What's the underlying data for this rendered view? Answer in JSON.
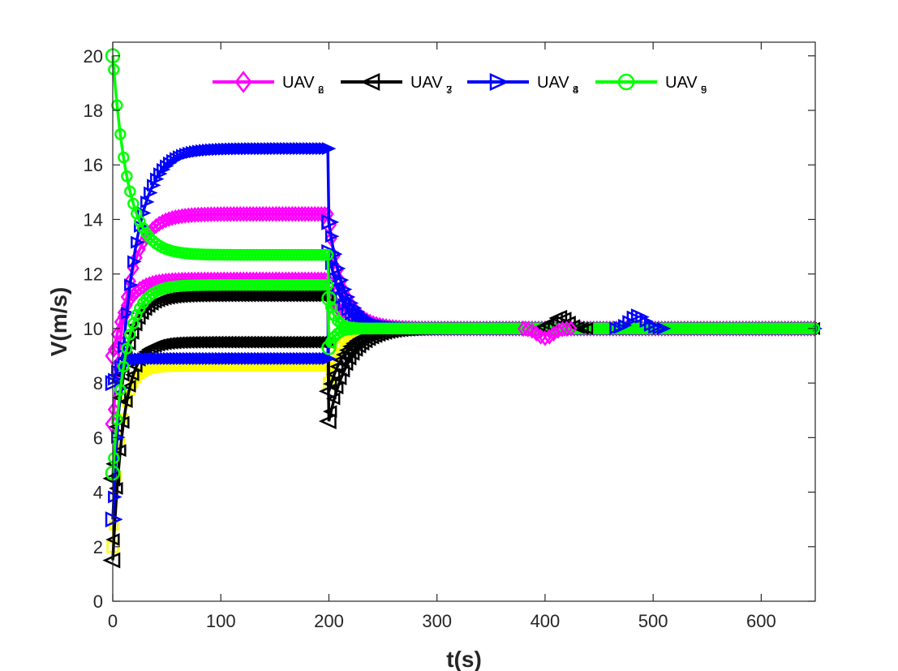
{
  "chart_data": {
    "type": "line",
    "xlabel": "t(s)",
    "ylabel": "V(m/s)",
    "xlim": [
      0,
      650
    ],
    "ylim": [
      0,
      20.5
    ],
    "xticks": [
      0,
      100,
      200,
      300,
      400,
      500,
      600
    ],
    "yticks": [
      0,
      2,
      4,
      6,
      8,
      10,
      12,
      14,
      16,
      18,
      20
    ],
    "grid": false,
    "legend_position": "top",
    "legend": [
      {
        "base": "UAV",
        "sub": "2",
        "sub_overlap": "6",
        "color": "#ff00ff",
        "marker": "diamond"
      },
      {
        "base": "UAV",
        "sub": "3",
        "sub_overlap": "7",
        "color": "#000000",
        "marker": "triangle-left"
      },
      {
        "base": "UAV",
        "sub": "4",
        "sub_overlap": "8",
        "color": "#0000ff",
        "marker": "triangle-right"
      },
      {
        "base": "UAV",
        "sub": "5",
        "sub_overlap": "9",
        "color": "#00ff00",
        "marker": "circle"
      }
    ],
    "series": [
      {
        "color": "#ffff00",
        "marker": "square",
        "initial": 2.0,
        "phase1": 8.6,
        "mid": 10.0,
        "final": 10.0,
        "drop": 8.0,
        "tau1": 8,
        "tau2": 10
      },
      {
        "color": "#ff00ff",
        "marker": "diamond",
        "initial": 6.5,
        "phase1": 14.2,
        "mid": 10.1,
        "final": 10.0,
        "drop": 13.8,
        "tau1": 14,
        "tau2": 14
      },
      {
        "color": "#ff00ff",
        "marker": "diamond",
        "initial": 9.0,
        "phase1": 11.8,
        "mid": 10.0,
        "final": 10.0,
        "drop": 11.5,
        "tau1": 12,
        "tau2": 12
      },
      {
        "color": "#000000",
        "marker": "triangle-left",
        "initial": 1.5,
        "phase1": 9.5,
        "mid": 9.9,
        "final": 10.0,
        "drop": 6.6,
        "tau1": 10,
        "tau2": 18
      },
      {
        "color": "#000000",
        "marker": "triangle-left",
        "initial": 4.5,
        "phase1": 11.2,
        "mid": 10.0,
        "final": 10.0,
        "drop": 7.7,
        "tau1": 12,
        "tau2": 16
      },
      {
        "color": "#0000ff",
        "marker": "triangle-right",
        "initial": 3.0,
        "phase1": 16.6,
        "mid": 10.2,
        "final": 10.0,
        "drop": 13.9,
        "tau1": 16,
        "tau2": 14
      },
      {
        "color": "#0000ff",
        "marker": "triangle-right",
        "initial": 8.0,
        "phase1": 8.9,
        "mid": 10.0,
        "final": 10.0,
        "drop": 12.8,
        "tau1": 6,
        "tau2": 12
      },
      {
        "color": "#00ff00",
        "marker": "circle",
        "initial": 20.0,
        "phase1": 12.7,
        "mid": 10.0,
        "final": 10.0,
        "drop": 11.1,
        "tau1": 14,
        "tau2": 6
      },
      {
        "color": "#00ff00",
        "marker": "circle",
        "initial": 4.7,
        "phase1": 11.6,
        "mid": 10.0,
        "final": 10.0,
        "drop": 9.3,
        "tau1": 12,
        "tau2": 6
      }
    ],
    "bumps": [
      {
        "t": 415,
        "dv": 0.45,
        "color": "#000000",
        "marker": "triangle-left"
      },
      {
        "t": 485,
        "dv": 0.5,
        "color": "#0000ff",
        "marker": "triangle-right"
      },
      {
        "t": 400,
        "dv": -0.35,
        "color": "#ff00ff",
        "marker": "diamond"
      }
    ]
  }
}
